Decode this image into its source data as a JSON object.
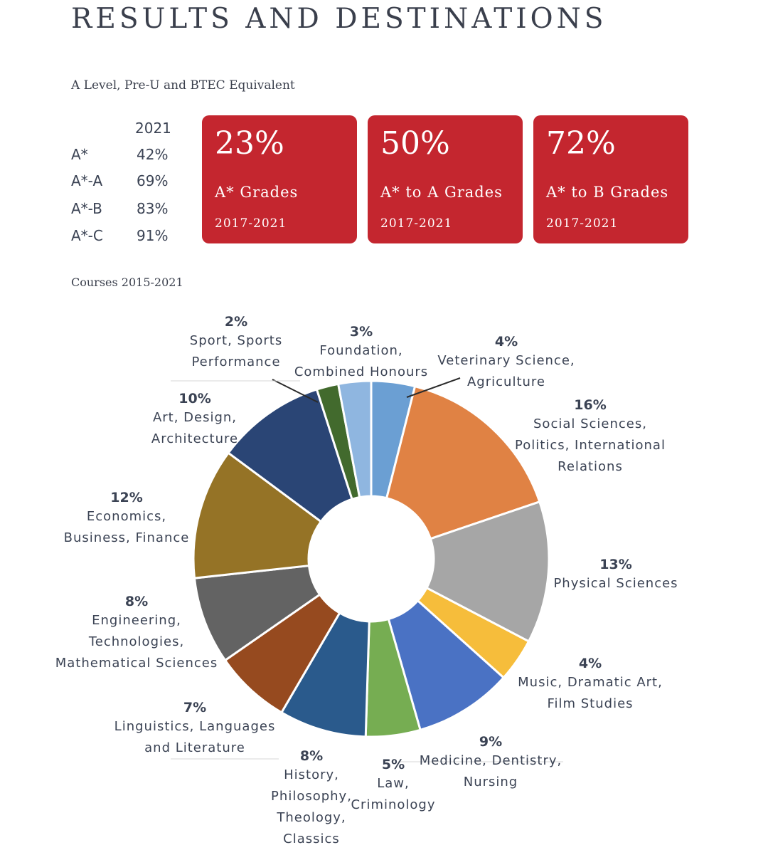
{
  "title": "RESULTS AND DESTINATIONS",
  "subtitle": "A Level, Pre-U and BTEC Equivalent",
  "grades_table": {
    "year": "2021",
    "rows": [
      {
        "grade": "A*",
        "value": "42%"
      },
      {
        "grade": "A*-A",
        "value": "69%"
      },
      {
        "grade": "A*-B",
        "value": "83%"
      },
      {
        "grade": "A*-C",
        "value": "91%"
      }
    ]
  },
  "stat_cards": [
    {
      "percent": "23%",
      "label": "A* Grades",
      "years": "2017-2021"
    },
    {
      "percent": "50%",
      "label": "A* to A Grades",
      "years": "2017-2021"
    },
    {
      "percent": "72%",
      "label": "A* to B Grades",
      "years": "2017-2021"
    }
  ],
  "courses_label": "Courses 2015-2021",
  "chart_data": {
    "type": "pie",
    "donut": true,
    "title": "",
    "slices": [
      {
        "percent": "4%",
        "value": 4,
        "label": "Veterinary Science, Agriculture",
        "label_lines": [
          "Veterinary Science,",
          "Agriculture"
        ],
        "color": "#6b9fd3"
      },
      {
        "percent": "16%",
        "value": 16,
        "label": "Social Sciences, Politics, International Relations",
        "label_lines": [
          "Social Sciences,",
          "Politics, International",
          "Relations"
        ],
        "color": "#e08244"
      },
      {
        "percent": "13%",
        "value": 13,
        "label": "Physical Sciences",
        "label_lines": [
          "Physical Sciences"
        ],
        "color": "#a6a6a6"
      },
      {
        "percent": "4%",
        "value": 4,
        "label": "Music, Dramatic Art, Film Studies",
        "label_lines": [
          "Music, Dramatic Art,",
          "Film Studies"
        ],
        "color": "#f6bd3b"
      },
      {
        "percent": "9%",
        "value": 9,
        "label": "Medicine, Dentistry, Nursing",
        "label_lines": [
          "Medicine, Dentistry,",
          "Nursing"
        ],
        "color": "#4a72c4"
      },
      {
        "percent": "5%",
        "value": 5,
        "label": "Law, Criminology",
        "label_lines": [
          "Law,",
          "Criminology"
        ],
        "color": "#76ad52"
      },
      {
        "percent": "8%",
        "value": 8,
        "label": "History, Philosophy, Theology, Classics",
        "label_lines": [
          "History,",
          "Philosophy,",
          "Theology,",
          "Classics"
        ],
        "color": "#2a5a8c"
      },
      {
        "percent": "7%",
        "value": 7,
        "label": "Linguistics, Languages and Literature",
        "label_lines": [
          "Linguistics, Languages",
          "and Literature"
        ],
        "color": "#964a1f"
      },
      {
        "percent": "8%",
        "value": 8,
        "label": "Engineering, Technologies, Mathematical Sciences",
        "label_lines": [
          "Engineering,",
          "Technologies,",
          "Mathematical Sciences"
        ],
        "color": "#636363"
      },
      {
        "percent": "12%",
        "value": 12,
        "label": "Economics, Business, Finance",
        "label_lines": [
          "Economics,",
          "Business, Finance"
        ],
        "color": "#957326"
      },
      {
        "percent": "10%",
        "value": 10,
        "label": "Art, Design, Architecture",
        "label_lines": [
          "Art, Design,",
          "Architecture"
        ],
        "color": "#2a4575"
      },
      {
        "percent": "2%",
        "value": 2,
        "label": "Sport, Sports Performance",
        "label_lines": [
          "Sport, Sports",
          "Performance"
        ],
        "color": "#426a2d"
      },
      {
        "percent": "3%",
        "value": 3,
        "label": "Foundation, Combined Honours",
        "label_lines": [
          "Foundation,",
          "Combined Honours"
        ],
        "color": "#8fb6e0"
      }
    ]
  }
}
